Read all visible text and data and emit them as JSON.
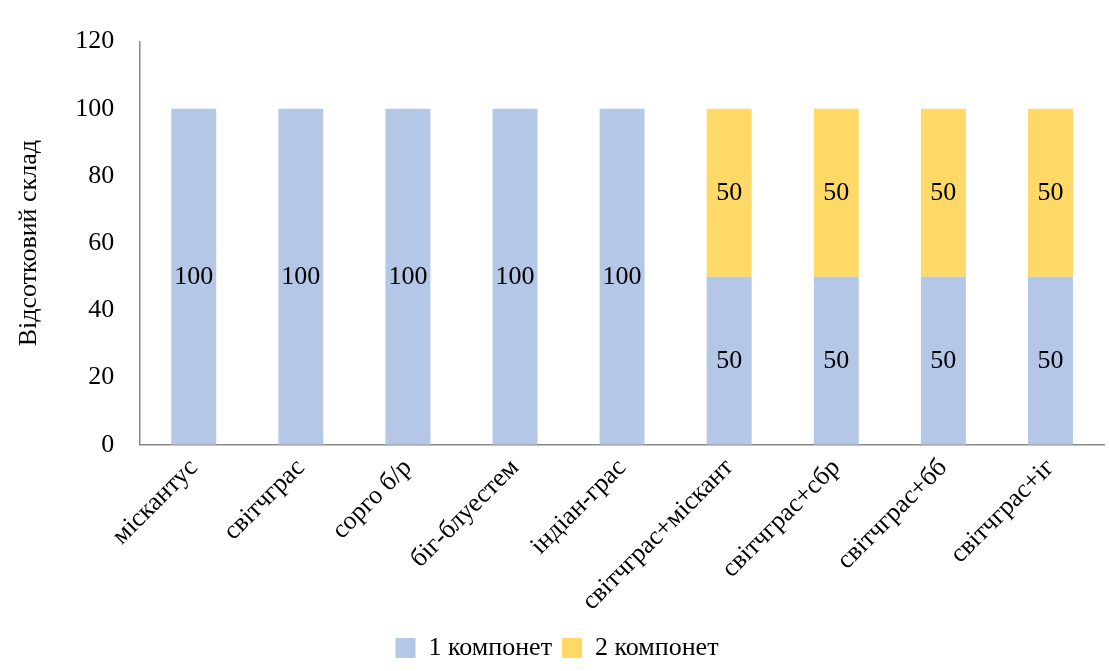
{
  "chart_data": {
    "type": "bar",
    "stacked": true,
    "ylabel": "Відсотковий склад",
    "categories": [
      "міскантус",
      "світчграс",
      "сорго б/р",
      "біг-блуестем",
      "індіан-грас",
      "світчграс+міскант",
      "світчграс+сбр",
      "світчграс+бб",
      "світчграс+іг"
    ],
    "series": [
      {
        "name": "1 компонет",
        "color": "#b4c7e7",
        "values": [
          100,
          100,
          100,
          100,
          100,
          50,
          50,
          50,
          50
        ]
      },
      {
        "name": "2 компонет",
        "color": "#ffd966",
        "values": [
          null,
          null,
          null,
          null,
          null,
          50,
          50,
          50,
          50
        ]
      }
    ],
    "ylim": [
      0,
      120
    ],
    "yticks": [
      0,
      20,
      40,
      60,
      80,
      100,
      120
    ],
    "grid": false,
    "legend": "bottom",
    "data_labels": true
  }
}
